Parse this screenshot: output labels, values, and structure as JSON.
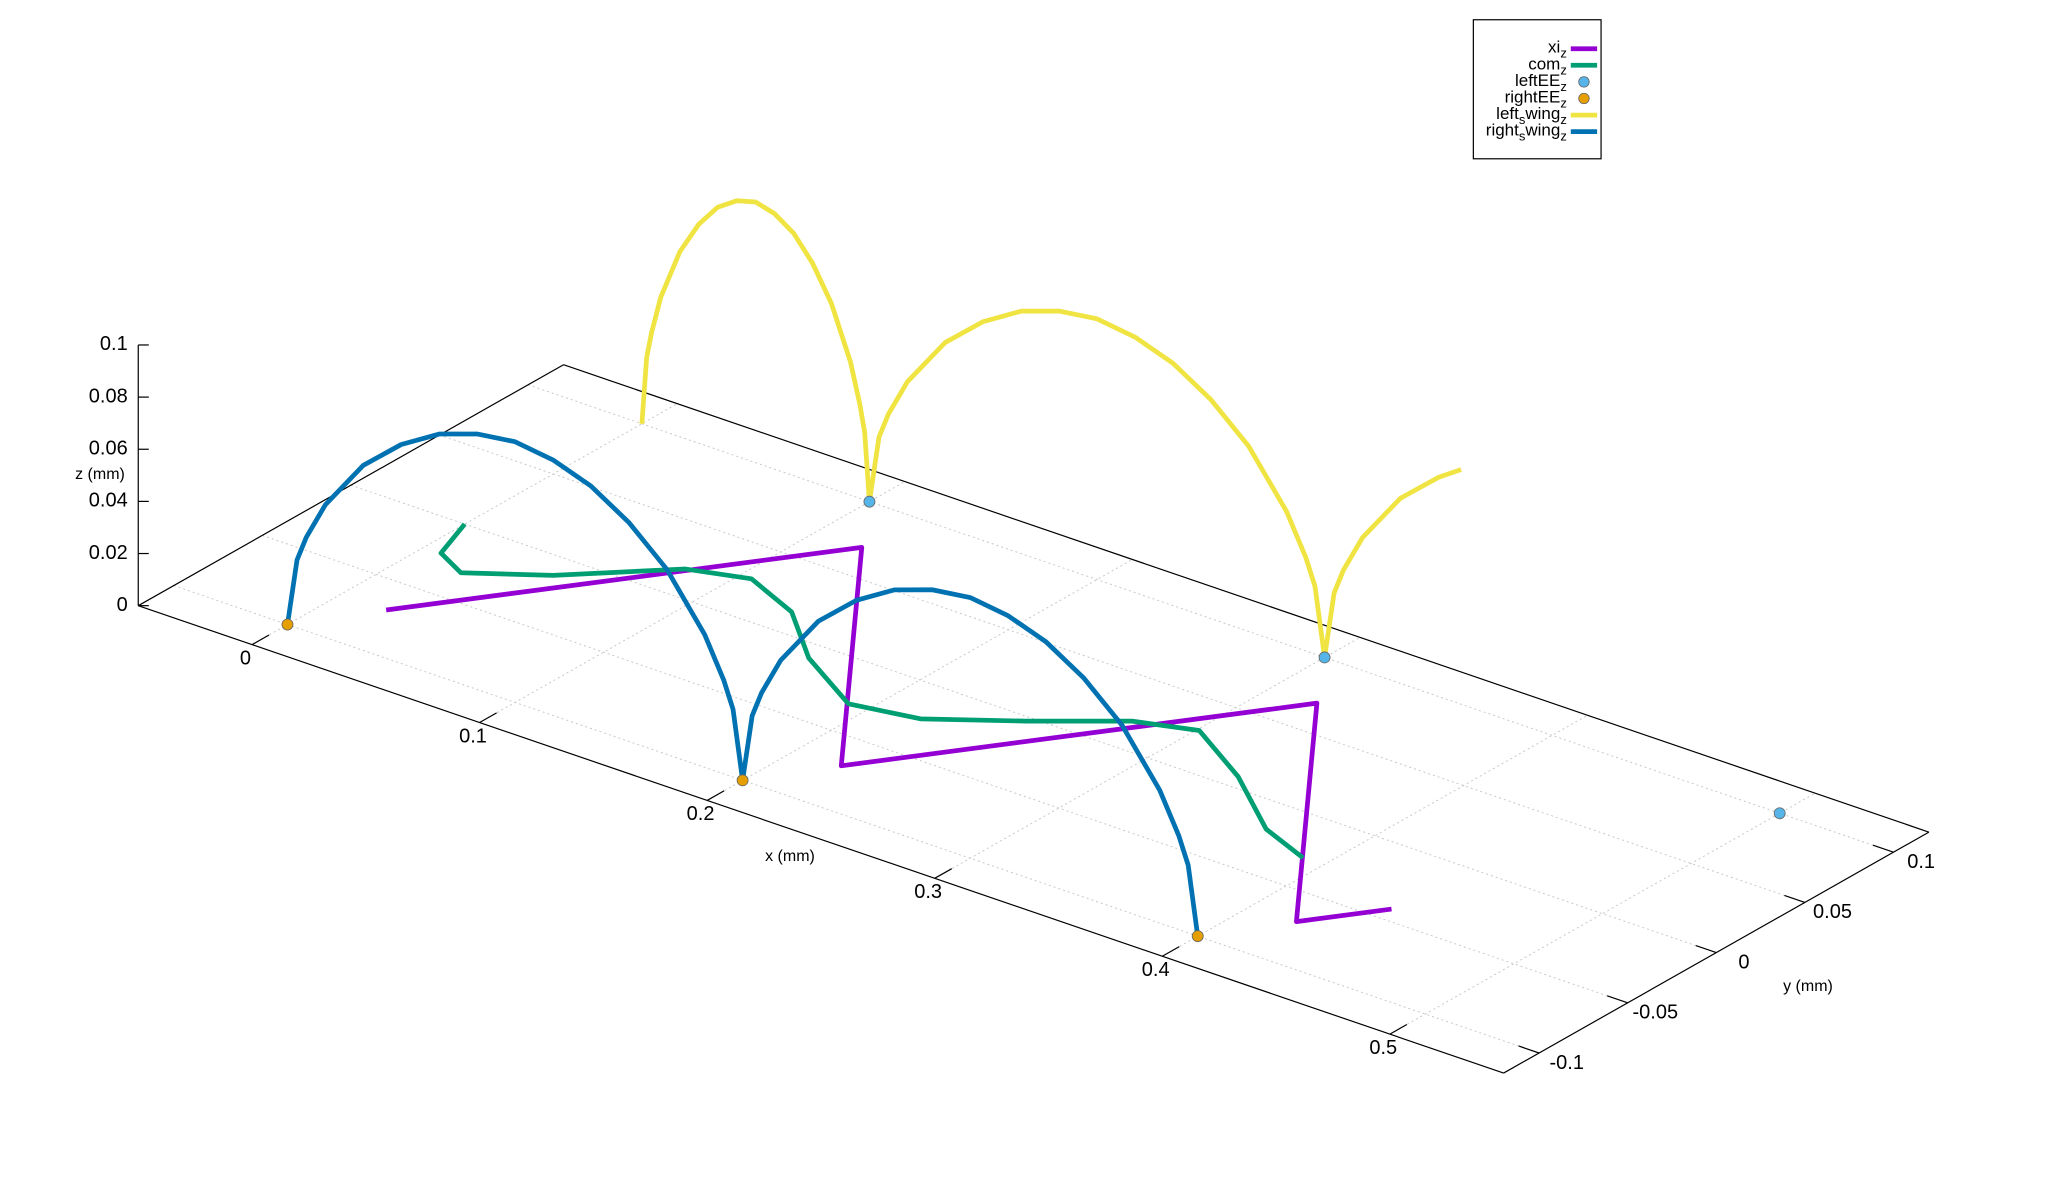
{
  "chart_data": {
    "type": "line3d",
    "xlabel": "x (mm)",
    "ylabel": "y (mm)",
    "zlabel": "z (mm)",
    "xlim": [
      -0.05,
      0.55
    ],
    "ylim": [
      -0.12,
      0.12
    ],
    "zlim": [
      0,
      0.1
    ],
    "xticks": [
      0,
      0.1,
      0.2,
      0.3,
      0.4,
      0.5
    ],
    "yticks": [
      -0.1,
      -0.05,
      0,
      0.05,
      0.1
    ],
    "zticks": [
      0,
      0.02,
      0.04,
      0.06,
      0.08,
      0.1
    ],
    "grid": true,
    "legend": "top-right",
    "series": [
      {
        "name": "xi_z",
        "color": "#9400d3",
        "mode": "lines",
        "x": [
          0.02,
          0.12,
          0.22,
          0.32,
          0.42,
          0.44
        ],
        "y": [
          -0.07,
          0.07,
          -0.07,
          0.07,
          -0.07,
          -0.042
        ],
        "z": [
          0,
          0,
          0,
          0,
          0,
          0
        ]
      },
      {
        "name": "com_z",
        "color": "#009e73",
        "mode": "lines",
        "x": [
          0,
          0.0075,
          0.0225,
          0.049,
          0.082,
          0.105,
          0.132,
          0.159,
          0.192,
          0.219,
          0.249,
          0.278,
          0.301,
          0.334,
          0.367,
          0.391
        ],
        "y": [
          0,
          -0.023,
          -0.031,
          -0.013,
          0.019,
          0.027,
          0.015,
          -0.01,
          -0.03,
          -0.024,
          -0.003,
          0.0195,
          0.028,
          0.0076,
          -0.019,
          -0.029
        ],
        "z": [
          0,
          0,
          0,
          0,
          0,
          0,
          0,
          0,
          0,
          0,
          0,
          0,
          0,
          0,
          0,
          0
        ]
      },
      {
        "name": "leftEE_z",
        "color": "#56b4e9",
        "mode": "points",
        "x": [
          0.1,
          0.3,
          0.5
        ],
        "y": [
          0.1,
          0.1,
          0.1
        ],
        "z": [
          0,
          0,
          0
        ]
      },
      {
        "name": "rightEE_z",
        "color": "#e69f00",
        "mode": "points",
        "x": [
          0,
          0.2,
          0.4
        ],
        "y": [
          -0.1,
          -0.1,
          -0.1
        ],
        "z": [
          0,
          0,
          0
        ]
      },
      {
        "name": "left_swing_z",
        "color": "#f0e442",
        "mode": "lines",
        "x": [
          0,
          0.0021,
          0.0042,
          0.0083,
          0.0167,
          0.025,
          0.0333,
          0.0417,
          0.05,
          0.0583,
          0.0667,
          0.075,
          0.0833,
          0.0917,
          0.0958,
          0.0979,
          0.1,
          0.1042,
          0.1083,
          0.1167,
          0.1333,
          0.15,
          0.1667,
          0.1833,
          0.2,
          0.2167,
          0.2333,
          0.25,
          0.2667,
          0.2833,
          0.2917,
          0.2958,
          0.3,
          0.3042,
          0.3083,
          0.3167,
          0.3333,
          0.35,
          0.36
        ],
        "y": [
          0.1,
          0.1,
          0.1,
          0.1,
          0.1,
          0.1,
          0.1,
          0.1,
          0.1,
          0.1,
          0.1,
          0.1,
          0.1,
          0.1,
          0.1,
          0.1,
          0.1,
          0.1,
          0.1,
          0.1,
          0.1,
          0.1,
          0.1,
          0.1,
          0.1,
          0.1,
          0.1,
          0.1,
          0.1,
          0.1,
          0.1,
          0.1,
          0.1,
          0.1,
          0.1,
          0.1,
          0.1,
          0.1,
          0.1
        ],
        "z": [
          0,
          0.026,
          0.036,
          0.051,
          0.071,
          0.084,
          0.093,
          0.098,
          0.1,
          0.098,
          0.093,
          0.084,
          0.071,
          0.051,
          0.036,
          0.026,
          0,
          0.026,
          0.036,
          0.051,
          0.071,
          0.084,
          0.093,
          0.098,
          0.1,
          0.098,
          0.093,
          0.084,
          0.071,
          0.051,
          0.036,
          0.026,
          0,
          0.026,
          0.036,
          0.051,
          0.071,
          0.084,
          0.09
        ]
      },
      {
        "name": "right_swing_z",
        "color": "#0072b2",
        "mode": "lines",
        "x": [
          0,
          0.0042,
          0.0083,
          0.0167,
          0.0333,
          0.05,
          0.0667,
          0.0833,
          0.1,
          0.1167,
          0.1333,
          0.15,
          0.1667,
          0.1833,
          0.1917,
          0.1958,
          0.2,
          0.2042,
          0.2083,
          0.2167,
          0.2333,
          0.25,
          0.2667,
          0.2833,
          0.3,
          0.3167,
          0.3333,
          0.35,
          0.3667,
          0.3833,
          0.3917,
          0.3958,
          0.4
        ],
        "y": [
          -0.1,
          -0.1,
          -0.1,
          -0.1,
          -0.1,
          -0.1,
          -0.1,
          -0.1,
          -0.1,
          -0.1,
          -0.1,
          -0.1,
          -0.1,
          -0.1,
          -0.1,
          -0.1,
          -0.1,
          -0.1,
          -0.1,
          -0.1,
          -0.1,
          -0.1,
          -0.1,
          -0.1,
          -0.1,
          -0.1,
          -0.1,
          -0.1,
          -0.1,
          -0.1,
          -0.1,
          -0.1,
          -0.1
        ],
        "z": [
          0,
          0.026,
          0.036,
          0.051,
          0.071,
          0.084,
          0.093,
          0.098,
          0.1,
          0.098,
          0.093,
          0.084,
          0.071,
          0.051,
          0.036,
          0.026,
          0,
          0.026,
          0.036,
          0.051,
          0.071,
          0.084,
          0.093,
          0.098,
          0.1,
          0.098,
          0.093,
          0.084,
          0.071,
          0.051,
          0.036,
          0.026,
          0
        ]
      }
    ]
  }
}
